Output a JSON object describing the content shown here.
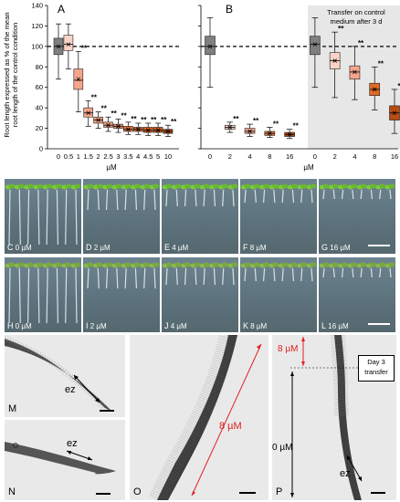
{
  "panels": {
    "A": "A",
    "B": "B",
    "C": {
      "letter": "C",
      "conc": "0 µM"
    },
    "D": {
      "letter": "D",
      "conc": "2 µM"
    },
    "E": {
      "letter": "E",
      "conc": "4 µM"
    },
    "F": {
      "letter": "F",
      "conc": "8 µM"
    },
    "G": {
      "letter": "G",
      "conc": "16 µM"
    },
    "H": {
      "letter": "H",
      "conc": "0 µM"
    },
    "I": {
      "letter": "I",
      "conc": "2 µM"
    },
    "J": {
      "letter": "J",
      "conc": "4 µM"
    },
    "K": {
      "letter": "K",
      "conc": "8 µM"
    },
    "L": {
      "letter": "L",
      "conc": "16 µM"
    },
    "M": "M",
    "N": "N",
    "O": "O",
    "P": "P"
  },
  "micro_labels": {
    "ez": "ez",
    "o_conc": "8 µM",
    "p_top_conc": "8 µM",
    "p_bottom_conc": "0 µM",
    "day3": "Day 3",
    "transfer": "transfer"
  },
  "colors": {
    "grey": "#7f7f7f",
    "red_arrow": "#e02020"
  },
  "chart_data": [
    {
      "type": "box",
      "panel": "A",
      "ylabel": "Root length expressed as % of the mean root length of the control condition",
      "xlabel": "µM",
      "ylim": [
        0,
        140
      ],
      "yticks": [
        0,
        20,
        40,
        60,
        80,
        100,
        120,
        140
      ],
      "reference_line": 100,
      "categories": [
        "0",
        "0.5",
        "1",
        "1.5",
        "2",
        "2.5",
        "3",
        "3.5",
        "4",
        "4.5",
        "5",
        "10"
      ],
      "boxes": [
        {
          "q1": 92,
          "median": 100,
          "q3": 108,
          "mean": 100,
          "min": 68,
          "max": 122,
          "sig": "",
          "color": "#7f7f7f"
        },
        {
          "q1": 96,
          "median": 102,
          "q3": 111,
          "mean": 102,
          "min": 78,
          "max": 122,
          "sig": "",
          "color": "#fbd3c6"
        },
        {
          "q1": 58,
          "median": 67,
          "q3": 78,
          "mean": 68,
          "min": 36,
          "max": 95,
          "sig": "**",
          "color": "#f4a58c"
        },
        {
          "q1": 31,
          "median": 35,
          "q3": 40,
          "mean": 35,
          "min": 22,
          "max": 47,
          "sig": "**",
          "color": "#f4a58c"
        },
        {
          "q1": 25,
          "median": 28,
          "q3": 31,
          "mean": 28,
          "min": 20,
          "max": 36,
          "sig": "**",
          "color": "#f0a080"
        },
        {
          "q1": 21,
          "median": 23,
          "q3": 26,
          "mean": 23,
          "min": 17,
          "max": 31,
          "sig": "**",
          "color": "#f0a080"
        },
        {
          "q1": 20,
          "median": 22,
          "q3": 24,
          "mean": 22,
          "min": 16,
          "max": 29,
          "sig": "**",
          "color": "#ec9060"
        },
        {
          "q1": 17,
          "median": 19,
          "q3": 22,
          "mean": 19,
          "min": 14,
          "max": 26,
          "sig": "**",
          "color": "#e87a40"
        },
        {
          "q1": 17,
          "median": 19,
          "q3": 21,
          "mean": 19,
          "min": 14,
          "max": 25,
          "sig": "**",
          "color": "#e06a28"
        },
        {
          "q1": 16,
          "median": 18,
          "q3": 21,
          "mean": 18,
          "min": 13,
          "max": 25,
          "sig": "**",
          "color": "#d86020"
        },
        {
          "q1": 16,
          "median": 18,
          "q3": 21,
          "mean": 18,
          "min": 13,
          "max": 25,
          "sig": "**",
          "color": "#c85a1a"
        },
        {
          "q1": 15,
          "median": 17,
          "q3": 19,
          "mean": 17,
          "min": 12,
          "max": 23,
          "sig": "**",
          "color": "#b84c12"
        }
      ]
    },
    {
      "type": "box",
      "panel": "B",
      "xlabel": "µM",
      "ylim": [
        0,
        140
      ],
      "reference_line": 100,
      "annotation": [
        "Transfer on control",
        "medium after 3 d"
      ],
      "categories": [
        "0",
        "2",
        "4",
        "8",
        "16",
        "0",
        "2",
        "4",
        "8",
        "16"
      ],
      "boxes": [
        {
          "q1": 92,
          "median": 100,
          "q3": 110,
          "mean": 100,
          "min": 60,
          "max": 128,
          "sig": "",
          "color": "#7f7f7f"
        },
        {
          "q1": 19,
          "median": 21,
          "q3": 23,
          "mean": 21,
          "min": 16,
          "max": 26,
          "sig": "**",
          "color": "#fbd3c6"
        },
        {
          "q1": 15,
          "median": 17,
          "q3": 20,
          "mean": 17,
          "min": 12,
          "max": 24,
          "sig": "**",
          "color": "#f4a58c"
        },
        {
          "q1": 13,
          "median": 15,
          "q3": 17,
          "mean": 15,
          "min": 11,
          "max": 21,
          "sig": "**",
          "color": "#e87a40"
        },
        {
          "q1": 12,
          "median": 14,
          "q3": 16,
          "mean": 14,
          "min": 10,
          "max": 19,
          "sig": "**",
          "color": "#b84c12"
        },
        {
          "q1": 92,
          "median": 102,
          "q3": 110,
          "mean": 102,
          "min": 60,
          "max": 128,
          "sig": "",
          "color": "#7f7f7f"
        },
        {
          "q1": 78,
          "median": 86,
          "q3": 94,
          "mean": 86,
          "min": 50,
          "max": 114,
          "sig": "**",
          "color": "#fbd3c6"
        },
        {
          "q1": 68,
          "median": 75,
          "q3": 81,
          "mean": 75,
          "min": 48,
          "max": 100,
          "sig": "**",
          "color": "#f4a58c"
        },
        {
          "q1": 52,
          "median": 58,
          "q3": 64,
          "mean": 58,
          "min": 38,
          "max": 80,
          "sig": "**",
          "color": "#e06a28"
        },
        {
          "q1": 28,
          "median": 35,
          "q3": 42,
          "mean": 35,
          "min": 15,
          "max": 58,
          "sig": "**",
          "color": "#b84c12"
        }
      ]
    }
  ]
}
